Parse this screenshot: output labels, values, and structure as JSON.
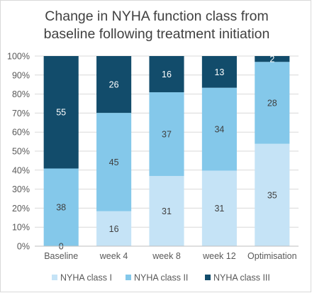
{
  "chart_data": {
    "type": "bar",
    "stacked": true,
    "percent_stacked": true,
    "title_lines": [
      "Change in NYHA function class from",
      "baseline following treatment initiation"
    ],
    "xlabel": "",
    "ylabel": "",
    "ylim": [
      0,
      100
    ],
    "y_ticks": [
      "0%",
      "10%",
      "20%",
      "30%",
      "40%",
      "50%",
      "60%",
      "70%",
      "80%",
      "90%",
      "100%"
    ],
    "categories": [
      "Baseline",
      "week 4",
      "week 8",
      "week 12",
      "Optimisation"
    ],
    "series": [
      {
        "name": "NYHA class I",
        "color": "#c5e3f6",
        "values": [
          0,
          16,
          31,
          31,
          35
        ]
      },
      {
        "name": "NYHA class II",
        "color": "#84c8ea",
        "values": [
          38,
          45,
          37,
          34,
          28
        ]
      },
      {
        "name": "NYHA class III",
        "color": "#124c6b",
        "values": [
          55,
          26,
          16,
          13,
          2
        ]
      }
    ],
    "label_colors": {
      "light": "#404040",
      "dark": "#ffffff"
    },
    "grid": true,
    "legend_position": "bottom"
  }
}
